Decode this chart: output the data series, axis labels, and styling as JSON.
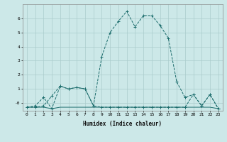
{
  "xlabel": "Humidex (Indice chaleur)",
  "background_color": "#cce8e8",
  "grid_color": "#aacccc",
  "line_color": "#1a6b6b",
  "xlim": [
    -0.5,
    23.5
  ],
  "ylim": [
    -0.55,
    7.0
  ],
  "x": [
    0,
    1,
    2,
    3,
    4,
    5,
    6,
    7,
    8,
    9,
    10,
    11,
    12,
    13,
    14,
    15,
    16,
    17,
    18,
    19,
    20,
    21,
    22,
    23
  ],
  "y_main": [
    -0.3,
    -0.2,
    0.4,
    -0.4,
    1.2,
    1.0,
    1.1,
    1.0,
    -0.2,
    3.3,
    5.0,
    5.8,
    6.5,
    5.4,
    6.2,
    6.2,
    5.5,
    4.6,
    1.5,
    0.4,
    0.6,
    -0.2,
    0.6,
    -0.4
  ],
  "y_line2": [
    -0.3,
    -0.3,
    -0.3,
    -0.4,
    -0.3,
    -0.3,
    -0.3,
    -0.3,
    -0.3,
    -0.3,
    -0.3,
    -0.3,
    -0.3,
    -0.3,
    -0.3,
    -0.3,
    -0.3,
    -0.3,
    -0.3,
    -0.3,
    -0.3,
    -0.3,
    -0.3,
    -0.4
  ],
  "y_line3": [
    -0.3,
    -0.3,
    -0.2,
    0.5,
    1.2,
    1.0,
    1.1,
    1.0,
    -0.2,
    -0.3,
    -0.3,
    -0.3,
    -0.3,
    -0.3,
    -0.3,
    -0.3,
    -0.3,
    -0.3,
    -0.3,
    -0.3,
    0.6,
    -0.2,
    0.6,
    -0.4
  ],
  "yticks": [
    0,
    1,
    2,
    3,
    4,
    5,
    6
  ],
  "ytick_labels": [
    "-0",
    "1",
    "2",
    "3",
    "4",
    "5",
    "6"
  ],
  "xticks": [
    0,
    1,
    2,
    3,
    4,
    5,
    6,
    7,
    8,
    9,
    10,
    11,
    12,
    13,
    14,
    15,
    16,
    17,
    18,
    19,
    20,
    21,
    22,
    23
  ]
}
